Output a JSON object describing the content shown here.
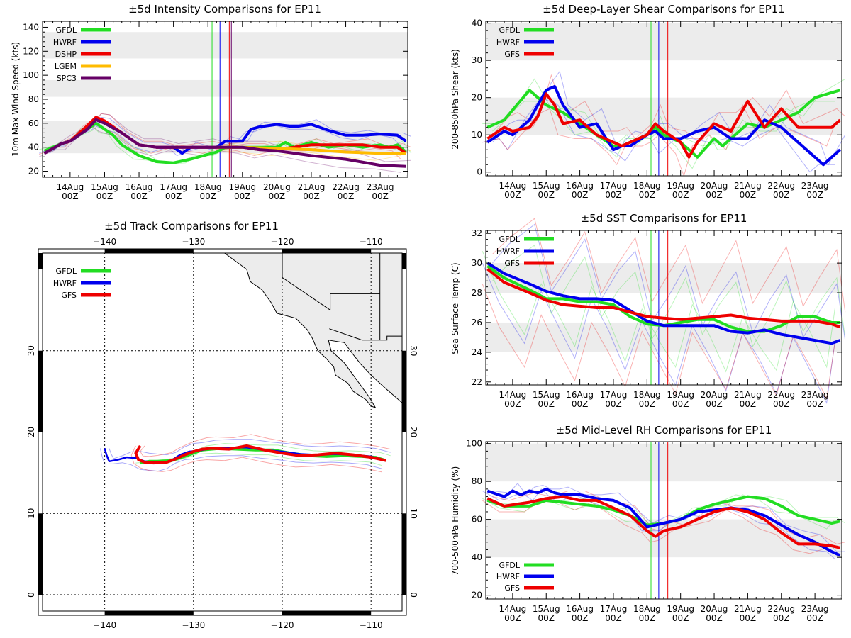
{
  "dates": [
    "14Aug",
    "15Aug",
    "16Aug",
    "17Aug",
    "18Aug",
    "19Aug",
    "20Aug",
    "21Aug",
    "22Aug",
    "23Aug"
  ],
  "time_label": "00Z",
  "colors": {
    "GFDL": "#22dd22",
    "HWRF": "#0000ee",
    "GFS": "#ee0000",
    "DSHP": "#ee0000",
    "LGEM": "#ffbb00",
    "SPC3": "#660066"
  },
  "chart_data": [
    {
      "type": "line",
      "id": "intensity",
      "title": "±5d Intensity Comparisons for EP11",
      "ylabel": "10m Max Wind Speed (kts)",
      "ylim": [
        15,
        145
      ],
      "yticks": [
        20,
        40,
        60,
        80,
        100,
        120,
        140
      ],
      "bands": [
        [
          35,
          62
        ],
        [
          82,
          96
        ],
        [
          114,
          136
        ]
      ],
      "x_range": [
        -0.8,
        9.8
      ],
      "vlines": [
        {
          "x": 4.12,
          "color": "#22dd22"
        },
        {
          "x": 4.35,
          "color": "#0000ee"
        },
        {
          "x": 4.62,
          "color": "#ee0000"
        },
        {
          "x": 4.68,
          "color": "#660066"
        }
      ],
      "legend": [
        "GFDL",
        "HWRF",
        "DSHP",
        "LGEM",
        "SPC3"
      ],
      "series": [
        {
          "name": "GFDL",
          "x": [
            -0.75,
            -0.25,
            0,
            0.5,
            0.75,
            1,
            1.25,
            1.5,
            2,
            2.5,
            3,
            3.5,
            4,
            4.25,
            4.5,
            5,
            5.5,
            6,
            6.25,
            6.5,
            7,
            7.5,
            8,
            8.5,
            9,
            9.25,
            9.5,
            9.75
          ],
          "values": [
            37,
            43,
            45,
            55,
            60,
            55,
            50,
            42,
            33,
            28,
            27,
            30,
            34,
            36,
            40,
            40,
            40,
            40,
            44,
            40,
            44,
            40,
            42,
            40,
            42,
            40,
            42,
            36
          ]
        },
        {
          "name": "HWRF",
          "x": [
            -0.75,
            -0.25,
            0,
            0.5,
            0.75,
            1,
            1.5,
            2,
            2.5,
            3,
            3.25,
            3.5,
            4,
            4.25,
            4.5,
            5,
            5.25,
            5.5,
            6,
            6.5,
            7,
            7.5,
            8,
            8.5,
            9,
            9.5,
            9.75
          ],
          "values": [
            35,
            43,
            45,
            55,
            63,
            60,
            52,
            42,
            40,
            40,
            35,
            40,
            40,
            40,
            45,
            45,
            55,
            57,
            59,
            57,
            59,
            54,
            50,
            50,
            51,
            50,
            45
          ]
        },
        {
          "name": "DSHP",
          "x": [
            -0.75,
            -0.25,
            0,
            0.5,
            0.75,
            1,
            1.5,
            2,
            2.5,
            3,
            3.5,
            4,
            4.5,
            5,
            5.5,
            6,
            6.5,
            7,
            7.5,
            8,
            8.5,
            9,
            9.5,
            9.75
          ],
          "values": [
            35,
            43,
            45,
            58,
            65,
            62,
            52,
            42,
            40,
            40,
            40,
            40,
            40,
            40,
            38,
            38,
            40,
            42,
            42,
            42,
            42,
            40,
            40,
            35
          ]
        },
        {
          "name": "LGEM",
          "x": [
            4.25,
            5,
            6,
            7,
            8,
            9,
            9.75
          ],
          "values": [
            40,
            40,
            39,
            38,
            36,
            35,
            35
          ]
        },
        {
          "name": "SPC3",
          "x": [
            -0.75,
            -0.25,
            0,
            0.5,
            0.75,
            1,
            1.5,
            2,
            2.5,
            3,
            3.5,
            4,
            4.5,
            5,
            5.5,
            6,
            7,
            8,
            9,
            9.75
          ],
          "values": [
            35,
            43,
            45,
            55,
            63,
            60,
            52,
            42,
            40,
            40,
            40,
            40,
            40,
            40,
            38,
            37,
            33,
            30,
            25,
            24
          ]
        }
      ]
    },
    {
      "type": "line",
      "id": "shear",
      "title": "±5d Deep-Layer Shear Comparisons for EP11",
      "ylabel": "200-850hPa Shear (kts)",
      "ylim": [
        -1,
        40.5
      ],
      "yticks": [
        0,
        10,
        20,
        30,
        40
      ],
      "bands": [
        [
          10,
          20
        ],
        [
          30,
          40
        ]
      ],
      "x_range": [
        -0.8,
        9.8
      ],
      "vlines": [
        {
          "x": 4.12,
          "color": "#22dd22"
        },
        {
          "x": 4.35,
          "color": "#0000ee"
        },
        {
          "x": 4.62,
          "color": "#ee0000"
        }
      ],
      "legend": [
        "GFDL",
        "HWRF",
        "GFS"
      ],
      "series": [
        {
          "name": "GFDL",
          "x": [
            -0.75,
            -0.25,
            0.5,
            1,
            1.5,
            2,
            2.5,
            3,
            3.25,
            3.5,
            4,
            4.25,
            4.5,
            5,
            5.5,
            6,
            6.25,
            6.5,
            7,
            7.5,
            8,
            8.5,
            9,
            9.75
          ],
          "values": [
            12,
            14,
            22,
            18,
            16,
            13,
            10,
            7,
            7,
            8,
            10,
            12,
            10,
            8,
            4,
            9,
            7,
            9,
            13,
            12,
            14,
            16,
            20,
            22
          ]
        },
        {
          "name": "HWRF",
          "x": [
            -0.75,
            -0.25,
            0,
            0.5,
            1,
            1.25,
            1.5,
            2,
            2.5,
            3,
            3.25,
            3.5,
            4,
            4.25,
            4.5,
            5,
            5.5,
            6,
            6.5,
            7,
            7.5,
            8,
            8.5,
            9,
            9.25,
            9.5,
            9.75
          ],
          "values": [
            8,
            11,
            10,
            14,
            22,
            23,
            18,
            12,
            13,
            6,
            7,
            7,
            10,
            11,
            9,
            9,
            11,
            12,
            9,
            9,
            14,
            12,
            8,
            4,
            2,
            4,
            6
          ]
        },
        {
          "name": "GFS",
          "x": [
            -0.75,
            -0.25,
            0,
            0.5,
            0.75,
            1,
            1.25,
            1.5,
            2,
            2.5,
            3,
            3.25,
            3.5,
            4,
            4.25,
            4.5,
            5,
            5.25,
            5.5,
            6,
            6.5,
            7,
            7.5,
            8,
            8.5,
            9,
            9.5,
            9.75
          ],
          "values": [
            9,
            12,
            11,
            12,
            15,
            21,
            18,
            13,
            14,
            10,
            8,
            7,
            8,
            10,
            13,
            11,
            8,
            4,
            8,
            13,
            11,
            19,
            12,
            17,
            12,
            12,
            12,
            14
          ]
        }
      ]
    },
    {
      "type": "line",
      "id": "sst",
      "title": "±5d SST Comparisons for EP11",
      "ylabel": "Sea Surface Temp (C)",
      "ylim": [
        21.8,
        32.2
      ],
      "yticks": [
        22,
        24,
        26,
        28,
        30,
        32
      ],
      "bands": [
        [
          24,
          26
        ],
        [
          28,
          30
        ]
      ],
      "x_range": [
        -0.8,
        9.8
      ],
      "vlines": [
        {
          "x": 4.12,
          "color": "#22dd22"
        },
        {
          "x": 4.35,
          "color": "#0000ee"
        },
        {
          "x": 4.62,
          "color": "#ee0000"
        }
      ],
      "legend": [
        "GFDL",
        "HWRF",
        "GFS"
      ],
      "series": [
        {
          "name": "GFDL",
          "x": [
            -0.75,
            -0.25,
            0.5,
            1,
            1.5,
            2,
            2.5,
            3,
            3.5,
            4,
            4.5,
            5,
            5.5,
            6,
            6.5,
            7,
            7.5,
            8,
            8.5,
            9,
            9.5,
            9.75
          ],
          "values": [
            29.8,
            29.0,
            28.2,
            27.6,
            27.6,
            27.4,
            27.4,
            27.2,
            26.4,
            25.9,
            25.8,
            26.0,
            26.2,
            26.2,
            25.7,
            25.4,
            25.4,
            25.8,
            26.4,
            26.4,
            26.0,
            26.0
          ]
        },
        {
          "name": "HWRF",
          "x": [
            -0.75,
            -0.25,
            0.5,
            1,
            1.5,
            2,
            2.5,
            3,
            3.5,
            4,
            4.5,
            5,
            5.5,
            6,
            6.5,
            7,
            7.5,
            8,
            8.5,
            9,
            9.5,
            9.75
          ],
          "values": [
            30.0,
            29.3,
            28.6,
            28.1,
            27.8,
            27.6,
            27.6,
            27.5,
            26.8,
            26.1,
            25.8,
            25.8,
            25.8,
            25.8,
            25.4,
            25.3,
            25.5,
            25.2,
            25.0,
            24.8,
            24.6,
            24.8
          ]
        },
        {
          "name": "GFS",
          "x": [
            -0.75,
            -0.25,
            0.5,
            1,
            1.5,
            2,
            2.5,
            3,
            3.5,
            4,
            4.5,
            5,
            5.5,
            6,
            6.5,
            7,
            7.5,
            8,
            8.5,
            9,
            9.5,
            9.75
          ],
          "values": [
            29.6,
            28.7,
            28.0,
            27.5,
            27.2,
            27.1,
            27.0,
            27.0,
            26.7,
            26.4,
            26.3,
            26.2,
            26.3,
            26.4,
            26.5,
            26.3,
            26.2,
            26.1,
            26.1,
            26.1,
            25.9,
            25.7
          ]
        }
      ]
    },
    {
      "type": "line",
      "id": "rh",
      "title": "±5d Mid-Level RH Comparisons for EP11",
      "ylabel": "700-500hPa Humidity (%)",
      "ylim": [
        18,
        101
      ],
      "yticks": [
        20,
        40,
        60,
        80,
        100
      ],
      "bands": [
        [
          40,
          60
        ],
        [
          80,
          100
        ]
      ],
      "x_range": [
        -0.8,
        9.8
      ],
      "vlines": [
        {
          "x": 4.12,
          "color": "#22dd22"
        },
        {
          "x": 4.35,
          "color": "#0000ee"
        },
        {
          "x": 4.62,
          "color": "#ee0000"
        }
      ],
      "legend": [
        "GFDL",
        "HWRF",
        "GFS"
      ],
      "legend_position": "bottom-left",
      "series": [
        {
          "name": "GFDL",
          "x": [
            -0.75,
            -0.25,
            0.5,
            1,
            1.5,
            2,
            2.5,
            3,
            3.5,
            4,
            4.5,
            5,
            5.5,
            6,
            6.5,
            7,
            7.5,
            8,
            8.5,
            9,
            9.5,
            9.75
          ],
          "values": [
            70,
            67,
            67,
            70,
            69,
            68,
            67,
            65,
            62,
            57,
            58,
            60,
            65,
            68,
            70,
            72,
            71,
            67,
            62,
            60,
            58,
            59
          ]
        },
        {
          "name": "HWRF",
          "x": [
            -0.75,
            -0.25,
            0,
            0.25,
            0.5,
            0.75,
            1,
            1.25,
            1.5,
            2,
            2.5,
            3,
            3.5,
            4,
            4.5,
            5,
            5.5,
            6,
            6.5,
            7,
            7.5,
            8,
            8.5,
            9,
            9.5,
            9.75
          ],
          "values": [
            75,
            72,
            75,
            73,
            75,
            74,
            76,
            74,
            73,
            73,
            71,
            70,
            66,
            56,
            58,
            60,
            64,
            65,
            66,
            65,
            62,
            57,
            52,
            48,
            43,
            41
          ]
        },
        {
          "name": "GFS",
          "x": [
            -0.75,
            -0.25,
            0.5,
            1,
            1.5,
            2,
            2.5,
            3,
            3.5,
            4,
            4.25,
            4.5,
            5,
            5.5,
            6,
            6.5,
            7,
            7.5,
            8,
            8.5,
            9,
            9.5,
            9.75
          ],
          "values": [
            71,
            67,
            69,
            71,
            72,
            70,
            70,
            66,
            62,
            54,
            51,
            54,
            56,
            60,
            64,
            66,
            64,
            60,
            53,
            47,
            47,
            46,
            45
          ]
        }
      ]
    },
    {
      "type": "map",
      "id": "track",
      "title": "±5d Track Comparisons for EP11",
      "lon_range": [
        -147,
        -106.5
      ],
      "lat_range": [
        -2,
        42
      ],
      "lon_ticks": [
        -140,
        -130,
        -120,
        -110
      ],
      "lat_ticks": [
        0,
        10,
        20,
        30
      ],
      "legend": [
        "GFDL",
        "HWRF",
        "GFS"
      ],
      "series": [
        {
          "name": "GFDL",
          "lon": [
            -136,
            -135,
            -134,
            -132.5,
            -131,
            -129,
            -127,
            -125,
            -123,
            -121,
            -119,
            -117,
            -115,
            -113,
            -111,
            -109.5,
            -108.3
          ],
          "lat": [
            16.2,
            16.4,
            16.4,
            16.5,
            17,
            17.8,
            18,
            17.9,
            17.8,
            17.8,
            17.4,
            17.1,
            17.0,
            17.1,
            17.0,
            16.9,
            16.5
          ]
        },
        {
          "name": "HWRF",
          "lon": [
            -140,
            -139.8,
            -139.5,
            -138.5,
            -137.5,
            -136.5,
            -135.5,
            -134.5,
            -133.5,
            -132.5,
            -131.5,
            -130.5,
            -129.5,
            -128,
            -126,
            -124,
            -122,
            -120,
            -118,
            -116,
            -114,
            -112,
            -110,
            -108.3
          ],
          "lat": [
            18,
            17.2,
            16.4,
            16.6,
            16.9,
            16.8,
            16.4,
            16.3,
            16.2,
            16.5,
            17.2,
            17.6,
            17.7,
            18,
            18.1,
            18.1,
            17.8,
            17.6,
            17.3,
            17.2,
            17.3,
            17.2,
            17.0,
            16.5
          ]
        },
        {
          "name": "GFS",
          "lon": [
            -136,
            -136.5,
            -136.2,
            -135.5,
            -134.5,
            -133,
            -132,
            -131,
            -130,
            -129,
            -128,
            -126,
            -124,
            -122,
            -120,
            -118,
            -116,
            -114,
            -112,
            -110,
            -108.3
          ],
          "lat": [
            18.3,
            17.4,
            16.6,
            16.3,
            16.2,
            16.3,
            16.7,
            17.2,
            17.6,
            17.9,
            18.0,
            17.9,
            18.3,
            17.8,
            17.4,
            17.1,
            17.2,
            17.4,
            17.2,
            16.9,
            16.5
          ]
        }
      ]
    }
  ]
}
